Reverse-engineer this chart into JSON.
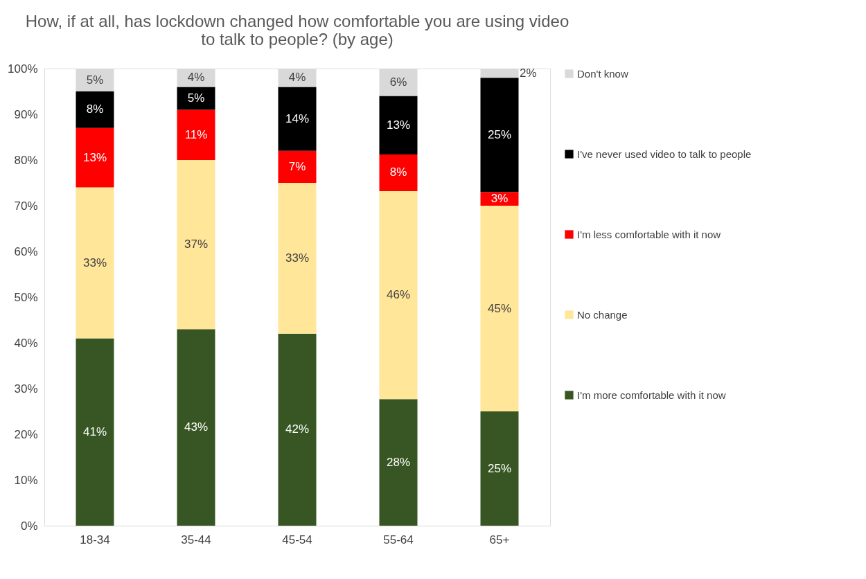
{
  "chart_data": {
    "type": "bar",
    "stacked": true,
    "title": "How, if at all, has lockdown changed how comfortable you are using video to talk to people? (by age)",
    "categories": [
      "18-34",
      "35-44",
      "45-54",
      "55-64",
      "65+"
    ],
    "series": [
      {
        "name": "I'm more comfortable with it now",
        "color": "#375623",
        "values": [
          41,
          43,
          42,
          27.7,
          25
        ],
        "value_labels": [
          "41%",
          "43%",
          "42%",
          "28%",
          "25%"
        ]
      },
      {
        "name": "No change",
        "color": "#ffe699",
        "values": [
          33,
          37,
          33,
          45.5,
          45
        ],
        "value_labels": [
          "33%",
          "37%",
          "33%",
          "46%",
          "45%"
        ]
      },
      {
        "name": "I'm less comfortable with it now",
        "color": "#ff0000",
        "values": [
          13,
          11,
          7,
          8,
          3
        ],
        "value_labels": [
          "13%",
          "11%",
          "7%",
          "8%",
          "3%"
        ]
      },
      {
        "name": "I've never used video to talk to people",
        "color": "#000000",
        "values": [
          8,
          5,
          14,
          12.8,
          25
        ],
        "value_labels": [
          "8%",
          "5%",
          "14%",
          "13%",
          "25%"
        ]
      },
      {
        "name": "Don't know",
        "color": "#d9d9d9",
        "values": [
          5,
          4,
          4,
          6,
          2
        ],
        "value_labels": [
          "5%",
          "4%",
          "4%",
          "6%",
          "2%"
        ]
      }
    ],
    "ylim": [
      0,
      100
    ],
    "yticks": [
      {
        "value": 0,
        "label": "0%"
      },
      {
        "value": 10,
        "label": "10%"
      },
      {
        "value": 20,
        "label": "20%"
      },
      {
        "value": 30,
        "label": "30%"
      },
      {
        "value": 40,
        "label": "40%"
      },
      {
        "value": 50,
        "label": "50%"
      },
      {
        "value": 60,
        "label": "60%"
      },
      {
        "value": 70,
        "label": "70%"
      },
      {
        "value": 80,
        "label": "80%"
      },
      {
        "value": 90,
        "label": "90%"
      },
      {
        "value": 100,
        "label": "100%"
      }
    ],
    "grid": false,
    "legend": "right"
  }
}
